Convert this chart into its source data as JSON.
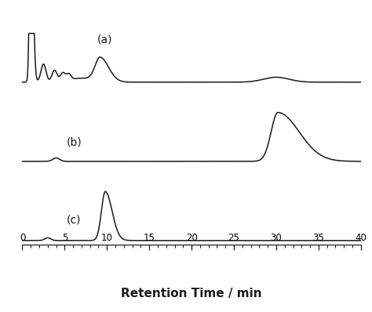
{
  "xlabel": "Retention Time / min",
  "xlim": [
    0,
    40
  ],
  "tick_positions": [
    0,
    5,
    10,
    15,
    20,
    25,
    30,
    35,
    40
  ],
  "background_color": "#ffffff",
  "line_color": "#1a1a1a",
  "line_width": 1.1,
  "label_a": "(a)",
  "label_b": "(b)",
  "label_c": "(c)",
  "label_fontsize": 10,
  "xlabel_fontsize": 11,
  "xlabel_fontweight": "bold"
}
